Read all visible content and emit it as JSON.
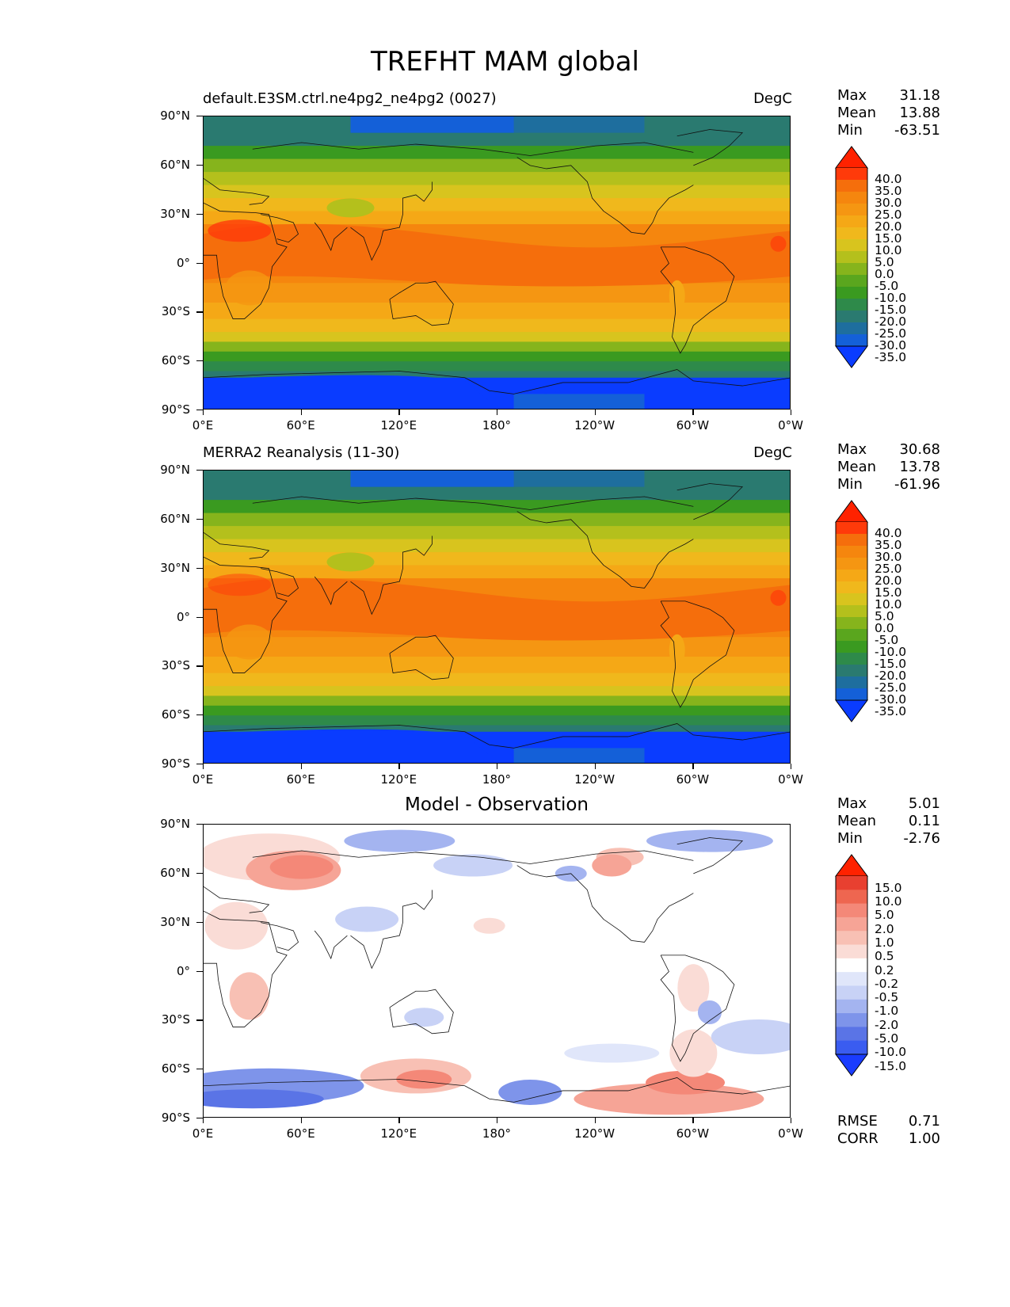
{
  "figure_title": "TREFHT MAM global",
  "axes": {
    "lat_labels": [
      "90°N",
      "60°N",
      "30°N",
      "0°",
      "30°S",
      "60°S",
      "90°S"
    ],
    "lon_labels": [
      "0°E",
      "60°E",
      "120°E",
      "180°",
      "120°W",
      "60°W",
      "0°W"
    ]
  },
  "panels": [
    {
      "title_left": "default.E3SM.ctrl.ne4pg2_ne4pg2 (0027)",
      "title_right": "DegC",
      "stats": {
        "max_label": "Max",
        "max": "31.18",
        "mean_label": "Mean",
        "mean": "13.88",
        "min_label": "Min",
        "min": "-63.51"
      },
      "colorbar": {
        "levels": [
          "40.0",
          "35.0",
          "30.0",
          "25.0",
          "20.0",
          "15.0",
          "10.0",
          "5.0",
          "0.0",
          "-5.0",
          "-10.0",
          "-15.0",
          "-20.0",
          "-25.0",
          "-30.0",
          "-35.0"
        ]
      }
    },
    {
      "title_left": "MERRA2 Reanalysis (11-30)",
      "title_right": "DegC",
      "stats": {
        "max_label": "Max",
        "max": "30.68",
        "mean_label": "Mean",
        "mean": "13.78",
        "min_label": "Min",
        "min": "-61.96"
      },
      "colorbar": {
        "levels": [
          "40.0",
          "35.0",
          "30.0",
          "25.0",
          "20.0",
          "15.0",
          "10.0",
          "5.0",
          "0.0",
          "-5.0",
          "-10.0",
          "-15.0",
          "-20.0",
          "-25.0",
          "-30.0",
          "-35.0"
        ]
      }
    },
    {
      "title_center": "Model - Observation",
      "stats": {
        "max_label": "Max",
        "max": "5.01",
        "mean_label": "Mean",
        "mean": "0.11",
        "min_label": "Min",
        "min": "-2.76"
      },
      "colorbar": {
        "levels": [
          "15.0",
          "10.0",
          "5.0",
          "2.0",
          "1.0",
          "0.5",
          "0.2",
          "-0.2",
          "-0.5",
          "-1.0",
          "-2.0",
          "-5.0",
          "-10.0",
          "-15.0"
        ]
      },
      "metrics": {
        "rmse_label": "RMSE",
        "rmse": "0.71",
        "corr_label": "CORR",
        "corr": "1.00"
      }
    }
  ],
  "colors": {
    "temp_scale": [
      "#0a3cff",
      "#1460d8",
      "#1e6e9e",
      "#2a7a70",
      "#2e8a4a",
      "#3a9a20",
      "#5aa61e",
      "#86b41c",
      "#b4c01c",
      "#d8c41e",
      "#f0b81c",
      "#f5a816",
      "#f59612",
      "#f5860e",
      "#f56e0c",
      "#ff3a0a",
      "#ff2200"
    ],
    "diff_scale": [
      "#1a3cff",
      "#3a5cf0",
      "#5a74e6",
      "#7e94ea",
      "#a4b4f0",
      "#c8d2f6",
      "#e0e6fa",
      "#ffffff",
      "#fadcd6",
      "#f8c0b4",
      "#f6a496",
      "#f48878",
      "#ee6650",
      "#e84030",
      "#ff2200"
    ]
  }
}
